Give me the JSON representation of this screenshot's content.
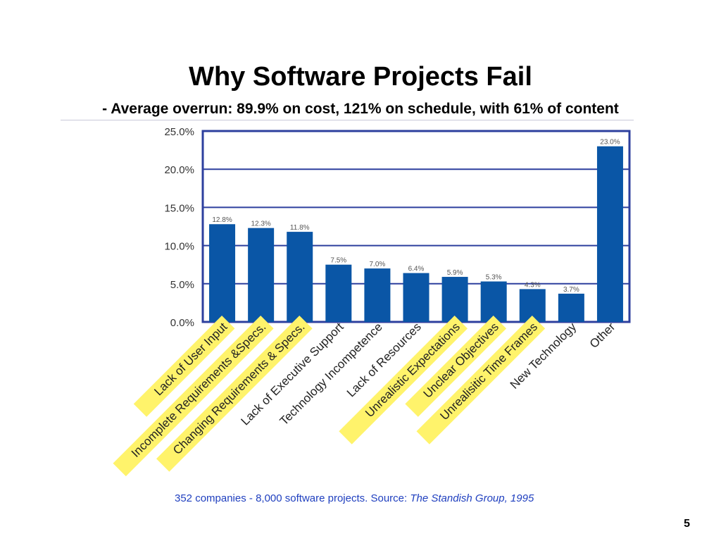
{
  "page": {
    "title": "Why Software Projects Fail",
    "subtitle": "- Average overrun: 89.9% on cost, 121% on schedule, with 61% of content",
    "source_prefix": "352 companies - 8,000 software projects.   Source: ",
    "source_italic": "The Standish Group, 1995",
    "page_number": "5"
  },
  "chart_data": {
    "type": "bar",
    "title": "",
    "xlabel": "",
    "ylabel": "",
    "ylim": [
      0,
      25
    ],
    "yticks": [
      "0.0%",
      "5.0%",
      "10.0%",
      "15.0%",
      "20.0%",
      "25.0%"
    ],
    "grid": true,
    "bar_color": "#0a56a6",
    "frame_color": "#2d3f9e",
    "highlight_color": "#fff36b",
    "categories": [
      "Lack of User Input",
      "Incomplete Requirements &Specs.",
      "Changing Requirements & Specs.",
      "Lack of Executive Support",
      "Technology Incompetence",
      "Lack of Resources",
      "Unrealistic Expectations",
      "Unclear Objectives",
      "Unrealisitic Time Frames",
      "New Technology",
      "Other"
    ],
    "values": [
      12.8,
      12.3,
      11.8,
      7.5,
      7.0,
      6.4,
      5.9,
      5.3,
      4.3,
      3.7,
      23.0
    ],
    "value_labels": [
      "12.8%",
      "12.3%",
      "11.8%",
      "7.5%",
      "7.0%",
      "6.4%",
      "5.9%",
      "5.3%",
      "4.3%",
      "3.7%",
      "23.0%"
    ],
    "highlighted": [
      true,
      true,
      true,
      false,
      false,
      false,
      true,
      true,
      true,
      false,
      false
    ]
  }
}
